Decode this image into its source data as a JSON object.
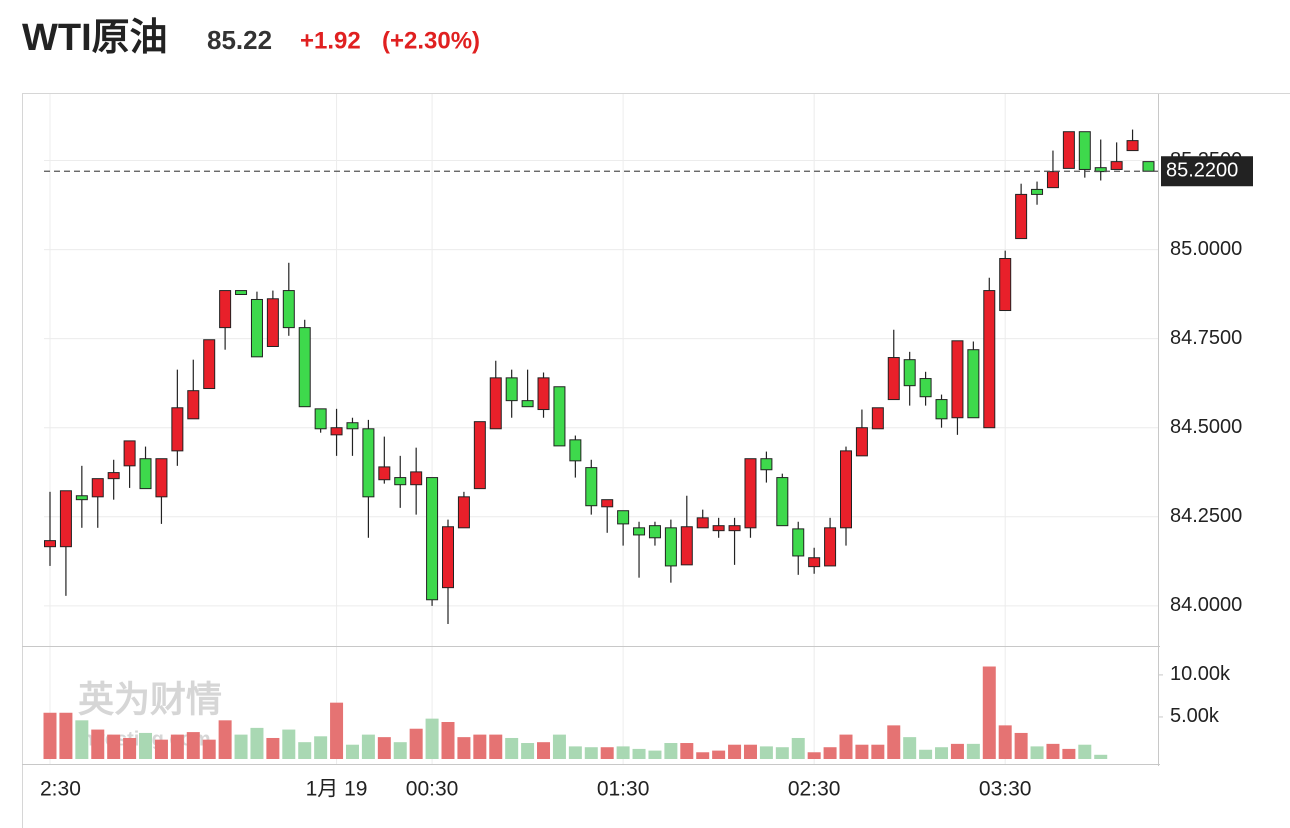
{
  "header": {
    "title": "WTI原油",
    "price": "85.22",
    "change": "+1.92",
    "change_percent": "(+2.30%)"
  },
  "chart_data": {
    "type": "candlestick",
    "up_color": "#e8202a",
    "down_color": "#3ed94c",
    "volume_up_color": "#e57373",
    "volume_down_color": "#a9d8b3",
    "grid": true,
    "open": [
      84.166,
      84.166,
      84.309,
      84.306,
      84.357,
      84.393,
      84.413,
      84.306,
      84.435,
      84.525,
      84.61,
      84.781,
      84.885,
      84.86,
      84.728,
      84.885,
      84.781,
      84.553,
      84.48,
      84.514,
      84.497,
      84.354,
      84.36,
      84.34,
      84.36,
      84.051,
      84.219,
      84.329,
      84.497,
      84.64,
      84.576,
      84.551,
      84.615,
      84.466,
      84.388,
      84.278,
      84.267,
      84.219,
      84.225,
      84.219,
      84.115,
      84.219,
      84.211,
      84.211,
      84.219,
      84.413,
      84.36,
      84.216,
      84.11,
      84.112,
      84.219,
      84.421,
      84.497,
      84.579,
      84.691,
      84.638,
      84.579,
      84.528,
      84.719,
      84.5,
      84.829,
      85.031,
      85.169,
      85.174,
      85.228,
      85.331,
      85.23,
      85.225,
      85.278,
      85.247
    ],
    "high": [
      84.32,
      84.323,
      84.393,
      84.357,
      84.41,
      84.463,
      84.447,
      84.413,
      84.663,
      84.691,
      84.747,
      84.885,
      84.885,
      84.882,
      84.885,
      84.963,
      84.803,
      84.553,
      84.553,
      84.528,
      84.522,
      84.475,
      84.421,
      84.444,
      84.36,
      84.242,
      84.32,
      84.517,
      84.688,
      84.663,
      84.663,
      84.655,
      84.615,
      84.478,
      84.41,
      84.298,
      84.267,
      84.236,
      84.236,
      84.242,
      84.309,
      84.27,
      84.247,
      84.247,
      84.413,
      84.433,
      84.371,
      84.236,
      84.163,
      84.247,
      84.447,
      84.551,
      84.556,
      84.775,
      84.713,
      84.657,
      84.593,
      84.744,
      84.742,
      84.921,
      84.997,
      85.185,
      85.191,
      85.278,
      85.331,
      85.331,
      85.309,
      85.301,
      85.337,
      85.247
    ],
    "low": [
      84.112,
      84.028,
      84.219,
      84.219,
      84.298,
      84.331,
      84.329,
      84.23,
      84.393,
      84.525,
      84.61,
      84.719,
      84.874,
      84.699,
      84.728,
      84.758,
      84.559,
      84.486,
      84.421,
      84.421,
      84.191,
      84.343,
      84.275,
      84.256,
      84.0,
      83.949,
      84.219,
      84.329,
      84.497,
      84.528,
      84.559,
      84.528,
      84.449,
      84.36,
      84.256,
      84.205,
      84.169,
      84.079,
      84.169,
      84.065,
      84.115,
      84.219,
      84.191,
      84.115,
      84.191,
      84.346,
      84.225,
      84.087,
      84.09,
      84.112,
      84.169,
      84.421,
      84.497,
      84.579,
      84.562,
      84.562,
      84.5,
      84.48,
      84.528,
      84.5,
      84.829,
      85.031,
      85.126,
      85.174,
      85.228,
      85.202,
      85.194,
      85.225,
      85.278,
      85.222
    ],
    "close": [
      84.183,
      84.323,
      84.298,
      84.357,
      84.374,
      84.463,
      84.329,
      84.413,
      84.556,
      84.604,
      84.747,
      84.885,
      84.874,
      84.699,
      84.862,
      84.781,
      84.559,
      84.497,
      84.5,
      84.497,
      84.306,
      84.39,
      84.34,
      84.376,
      84.017,
      84.222,
      84.306,
      84.517,
      84.64,
      84.576,
      84.559,
      84.64,
      84.449,
      84.407,
      84.281,
      84.298,
      84.23,
      84.199,
      84.191,
      84.112,
      84.222,
      84.247,
      84.225,
      84.225,
      84.413,
      84.382,
      84.225,
      84.14,
      84.135,
      84.219,
      84.435,
      84.5,
      84.556,
      84.697,
      84.618,
      84.587,
      84.525,
      84.744,
      84.528,
      84.885,
      84.975,
      85.155,
      85.155,
      85.219,
      85.331,
      85.225,
      85.219,
      85.247,
      85.306,
      85.22
    ],
    "volume": [
      5500,
      5500,
      4600,
      3500,
      2900,
      2500,
      3100,
      2300,
      2900,
      3200,
      2300,
      4600,
      2900,
      3700,
      2500,
      3500,
      2000,
      2700,
      6700,
      1700,
      2900,
      2600,
      2000,
      3600,
      4800,
      4400,
      2600,
      2900,
      2900,
      2500,
      1900,
      2000,
      2900,
      1500,
      1400,
      1400,
      1500,
      1200,
      1000,
      1900,
      1900,
      800,
      1000,
      1700,
      1700,
      1500,
      1400,
      2500,
      800,
      1400,
      2900,
      1700,
      1700,
      4000,
      2600,
      1100,
      1400,
      1800,
      1800,
      11000,
      4000,
      3100,
      1500,
      1800,
      1200,
      1700,
      500,
      0,
      0,
      0
    ],
    "ylim": [
      83.89,
      85.42
    ],
    "yticks": [
      {
        "value": 84,
        "label": "84.0000"
      },
      {
        "value": 84.25,
        "label": "84.2500"
      },
      {
        "value": 84.5,
        "label": "84.5000"
      },
      {
        "value": 84.75,
        "label": "84.7500"
      },
      {
        "value": 85,
        "label": "85.0000"
      },
      {
        "value": 85.25,
        "label": "85.2500"
      }
    ],
    "y2lim": [
      0,
      13200
    ],
    "y2ticks": [
      {
        "value": 5000,
        "label": "5.00k"
      },
      {
        "value": 10000,
        "label": "10.00k"
      }
    ],
    "last_price": {
      "value": 85.22,
      "label": "85.2200"
    },
    "xticks": [
      {
        "value": 0,
        "label": "2:30"
      },
      {
        "value": 18,
        "label": "1月 19"
      },
      {
        "value": 24,
        "label": "00:30"
      },
      {
        "value": 36,
        "label": "01:30"
      },
      {
        "value": 48,
        "label": "02:30"
      },
      {
        "value": 60,
        "label": "03:30"
      }
    ],
    "watermark": [
      "英为财情",
      "Investing.com"
    ]
  }
}
